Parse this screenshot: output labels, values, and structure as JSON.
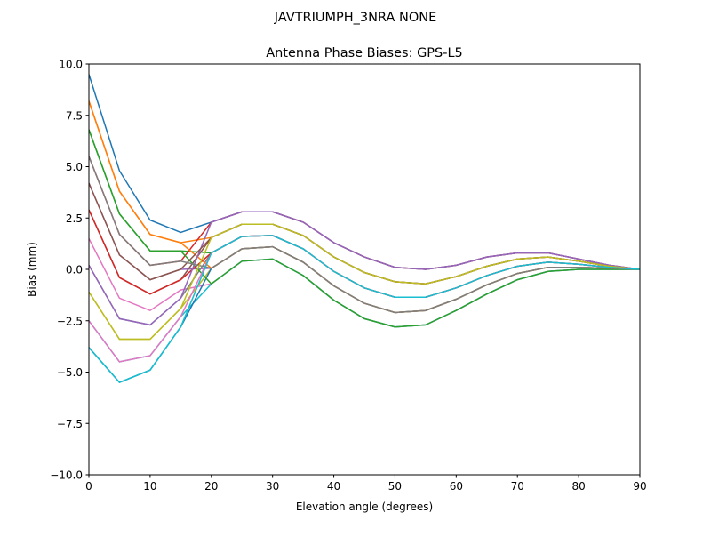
{
  "suptitle": "JAVTRIUMPH_3NRA NONE",
  "chart_data": {
    "type": "line",
    "title": "Antenna Phase Biases: GPS-L5",
    "xlabel": "Elevation angle (degrees)",
    "ylabel": "Bias (mm)",
    "xlim": [
      0,
      90
    ],
    "ylim": [
      -10,
      10
    ],
    "xticks": [
      "0",
      "10",
      "20",
      "30",
      "40",
      "50",
      "60",
      "70",
      "80",
      "90"
    ],
    "yticks": [
      "−10.0",
      "−7.5",
      "−5.0",
      "−2.5",
      "0.0",
      "2.5",
      "5.0",
      "7.5",
      "10.0"
    ],
    "grid": false,
    "legend": "none",
    "colors": [
      "#1f77b4",
      "#ff7f0e",
      "#2ca02c",
      "#d62728",
      "#9467bd",
      "#8c564b",
      "#e377c2",
      "#7f7f7f",
      "#bcbd22",
      "#17becf"
    ],
    "x": [
      0,
      5,
      10,
      15,
      20,
      25,
      30,
      35,
      40,
      45,
      50,
      55,
      60,
      65,
      70,
      75,
      80,
      85,
      90
    ],
    "series": [
      {
        "values": [
          9.5,
          4.8,
          2.4,
          1.8,
          2.3,
          2.8,
          2.8,
          2.3,
          1.3,
          0.6,
          0.1,
          0,
          0.2,
          0.6,
          0.8,
          0.8,
          0.5,
          0.2,
          0
        ]
      },
      {
        "values": [
          8.2,
          3.8,
          1.7,
          1.3,
          1.55,
          2.2,
          2.2,
          1.65,
          0.6,
          -0.15,
          -0.6,
          -0.7,
          -0.35,
          0.15,
          0.5,
          0.6,
          0.4,
          0.15,
          0
        ]
      },
      {
        "values": [
          6.8,
          2.7,
          0.9,
          0.9,
          0.8,
          1.6,
          1.65,
          1.0,
          -0.1,
          -0.9,
          -1.35,
          -1.35,
          -0.9,
          -0.3,
          0.15,
          0.35,
          0.25,
          0.1,
          0
        ]
      },
      {
        "values": [
          5.5,
          1.7,
          0.2,
          0.4,
          2.3,
          2.8,
          2.8,
          2.3,
          1.3,
          0.6,
          0.1,
          0,
          0.2,
          0.6,
          0.8,
          0.8,
          0.5,
          0.2,
          0
        ]
      },
      {
        "values": [
          4.2,
          0.7,
          -0.5,
          0.0,
          0.05,
          1.0,
          1.1,
          0.35,
          -0.8,
          -1.65,
          -2.1,
          -2.0,
          -1.45,
          -0.75,
          -0.2,
          0.1,
          0.1,
          0.05,
          0
        ]
      },
      {
        "values": [
          2.9,
          -0.4,
          -1.2,
          -0.5,
          1.55,
          2.2,
          2.2,
          1.65,
          0.6,
          -0.15,
          -0.6,
          -0.7,
          -0.35,
          0.15,
          0.5,
          0.6,
          0.4,
          0.15,
          0
        ]
      },
      {
        "values": [
          1.5,
          -1.4,
          -2.0,
          -1.0,
          -0.7,
          0.4,
          0.5,
          -0.3,
          -1.5,
          -2.4,
          -2.8,
          -2.7,
          -2.0,
          -1.2,
          -0.5,
          -0.1,
          0,
          0,
          0
        ]
      },
      {
        "values": [
          0.2,
          -2.4,
          -2.7,
          -1.4,
          0.8,
          1.6,
          1.65,
          1.0,
          -0.1,
          -0.9,
          -1.35,
          -1.35,
          -0.9,
          -0.3,
          0.15,
          0.35,
          0.25,
          0.1,
          0
        ]
      },
      {
        "values": [
          -1.1,
          -3.4,
          -3.4,
          -1.9,
          0.05,
          1.0,
          1.1,
          0.35,
          -0.8,
          -1.65,
          -2.1,
          -2.0,
          -1.45,
          -0.75,
          -0.2,
          0.1,
          0.1,
          0.05,
          0
        ]
      },
      {
        "values": [
          -2.5,
          -4.5,
          -4.2,
          -2.3,
          -0.7,
          0.4,
          0.5,
          -0.3,
          -1.5,
          -2.4,
          -2.8,
          -2.7,
          -2.0,
          -1.2,
          -0.5,
          -0.1,
          0,
          0,
          0
        ]
      },
      {
        "values": [
          -3.8,
          -5.5,
          -4.9,
          -2.8,
          0.05,
          1.0,
          1.1,
          0.35,
          -0.8,
          -1.65,
          -2.1,
          -2.0,
          -1.45,
          -0.75,
          -0.2,
          0.1,
          0.1,
          0.05,
          0
        ]
      },
      {
        "values": [
          8.2,
          3.8,
          1.7,
          1.3,
          0.05,
          1.0,
          1.1,
          0.35,
          -0.8,
          -1.65,
          -2.1,
          -2.0,
          -1.45,
          -0.75,
          -0.2,
          0.1,
          0.1,
          0.05,
          0
        ]
      },
      {
        "values": [
          6.8,
          2.7,
          0.9,
          0.9,
          -0.7,
          0.4,
          0.5,
          -0.3,
          -1.5,
          -2.4,
          -2.8,
          -2.7,
          -2.0,
          -1.2,
          -0.5,
          -0.1,
          0,
          0,
          0
        ]
      },
      {
        "values": [
          2.9,
          -0.4,
          -1.2,
          -0.5,
          0.8,
          1.6,
          1.65,
          1.0,
          -0.1,
          -0.9,
          -1.35,
          -1.35,
          -0.9,
          -0.3,
          0.15,
          0.35,
          0.25,
          0.1,
          0
        ]
      },
      {
        "values": [
          0.2,
          -2.4,
          -2.7,
          -1.4,
          2.3,
          2.8,
          2.8,
          2.3,
          1.3,
          0.6,
          0.1,
          0,
          0.2,
          0.6,
          0.8,
          0.8,
          0.5,
          0.2,
          0
        ]
      },
      {
        "values": [
          4.2,
          0.7,
          -0.5,
          0.0,
          1.55,
          2.2,
          2.2,
          1.65,
          0.6,
          -0.15,
          -0.6,
          -0.7,
          -0.35,
          0.15,
          0.5,
          0.6,
          0.4,
          0.15,
          0
        ]
      },
      {
        "values": [
          -2.5,
          -4.5,
          -4.2,
          -2.3,
          0.8,
          1.6,
          1.65,
          1.0,
          -0.1,
          -0.9,
          -1.35,
          -1.35,
          -0.9,
          -0.3,
          0.15,
          0.35,
          0.25,
          0.1,
          0
        ]
      },
      {
        "values": [
          5.5,
          1.7,
          0.2,
          0.4,
          0.05,
          1.0,
          1.1,
          0.35,
          -0.8,
          -1.65,
          -2.1,
          -2.0,
          -1.45,
          -0.75,
          -0.2,
          0.1,
          0.1,
          0.05,
          0
        ]
      },
      {
        "values": [
          -1.1,
          -3.4,
          -3.4,
          -1.9,
          1.55,
          2.2,
          2.2,
          1.65,
          0.6,
          -0.15,
          -0.6,
          -0.7,
          -0.35,
          0.15,
          0.5,
          0.6,
          0.4,
          0.15,
          0
        ]
      },
      {
        "values": [
          -3.8,
          -5.5,
          -4.9,
          -2.8,
          0.8,
          1.6,
          1.65,
          1.0,
          -0.1,
          -0.9,
          -1.35,
          -1.35,
          -0.9,
          -0.3,
          0.15,
          0.35,
          0.25,
          0.1,
          0
        ]
      }
    ]
  }
}
